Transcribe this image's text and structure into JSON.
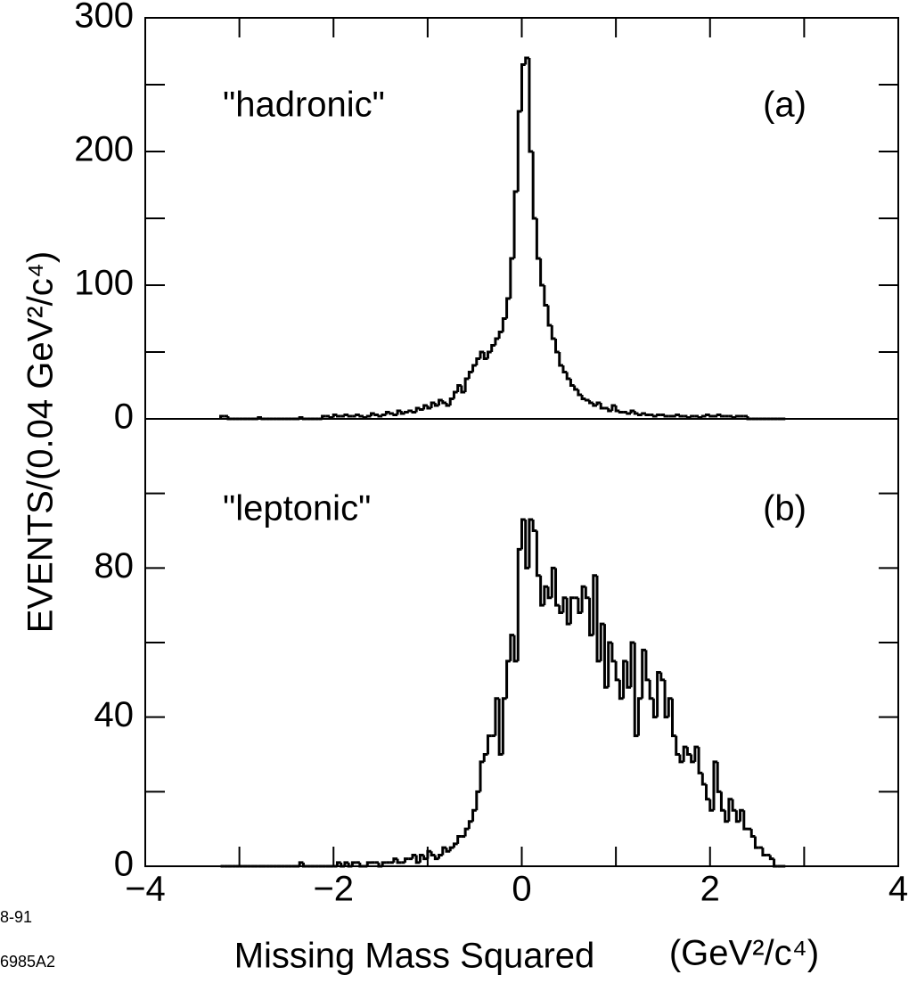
{
  "chart_data": {
    "type": "histogram",
    "ylabel": "EVENTS/(0.04 GeV²/c⁴)",
    "xlabel": "Missing Mass Squared",
    "xunit": "(GeV²/c⁴)",
    "notes": [
      "8-91",
      "6985A2"
    ],
    "color": "#000000",
    "xlim": [
      -4,
      4
    ],
    "xticks": [
      {
        "value": -4,
        "label": "−4"
      },
      {
        "value": -2,
        "label": "−2"
      },
      0,
      2,
      4
    ],
    "minor_xticks": [
      -3,
      -1,
      1,
      3
    ],
    "bins": [
      -3.2,
      -3.16,
      -3.12,
      -3.08,
      -3.04,
      -3,
      -2.96,
      -2.92,
      -2.88,
      -2.84,
      -2.8,
      -2.76,
      -2.72,
      -2.68,
      -2.64,
      -2.6,
      -2.56,
      -2.52,
      -2.48,
      -2.44,
      -2.4,
      -2.36,
      -2.32,
      -2.28,
      -2.24,
      -2.2,
      -2.16,
      -2.12,
      -2.08,
      -2.04,
      -2,
      -1.96,
      -1.92,
      -1.88,
      -1.84,
      -1.8,
      -1.76,
      -1.72,
      -1.68,
      -1.64,
      -1.6,
      -1.56,
      -1.52,
      -1.48,
      -1.44,
      -1.4,
      -1.36,
      -1.32,
      -1.28,
      -1.24,
      -1.2,
      -1.16,
      -1.12,
      -1.08,
      -1.04,
      -1,
      -0.96,
      -0.92,
      -0.88,
      -0.84,
      -0.8,
      -0.76,
      -0.72,
      -0.68,
      -0.64,
      -0.6,
      -0.56,
      -0.52,
      -0.48,
      -0.44,
      -0.4,
      -0.36,
      -0.32,
      -0.28,
      -0.24,
      -0.2,
      -0.16,
      -0.12,
      -0.08,
      -0.04,
      0,
      0.04,
      0.08,
      0.12,
      0.16,
      0.2,
      0.24,
      0.28,
      0.32,
      0.36,
      0.4,
      0.44,
      0.48,
      0.52,
      0.56,
      0.6,
      0.64,
      0.68,
      0.72,
      0.76,
      0.8,
      0.84,
      0.88,
      0.92,
      0.96,
      1,
      1.04,
      1.08,
      1.12,
      1.16,
      1.2,
      1.24,
      1.28,
      1.32,
      1.36,
      1.4,
      1.44,
      1.48,
      1.52,
      1.56,
      1.6,
      1.64,
      1.68,
      1.72,
      1.76,
      1.8,
      1.84,
      1.88,
      1.92,
      1.96,
      2,
      2.04,
      2.08,
      2.12,
      2.16,
      2.2,
      2.24,
      2.28,
      2.32,
      2.36,
      2.4,
      2.44,
      2.48,
      2.52,
      2.56,
      2.6,
      2.64,
      2.68,
      2.72,
      2.76,
      2.8
    ],
    "panels": [
      {
        "label": "\"hadronic\"",
        "tag": "(a)",
        "ylim": [
          0,
          300
        ],
        "yticks": [
          0,
          100,
          200,
          300
        ],
        "minor_yticks": [
          50,
          150,
          250
        ],
        "values": [
          2,
          2,
          0,
          0,
          0,
          0,
          0,
          0,
          0,
          0,
          1,
          0,
          0,
          0,
          0,
          0,
          0,
          0,
          0,
          0,
          0,
          1,
          0,
          0,
          0,
          0,
          0,
          2,
          2,
          1,
          3,
          2,
          2,
          3,
          2,
          2,
          3,
          2,
          1,
          2,
          4,
          3,
          2,
          3,
          5,
          4,
          3,
          6,
          4,
          5,
          6,
          5,
          8,
          7,
          10,
          8,
          12,
          10,
          14,
          12,
          10,
          15,
          20,
          25,
          20,
          30,
          35,
          40,
          45,
          50,
          45,
          50,
          55,
          60,
          65,
          75,
          90,
          120,
          170,
          230,
          265,
          270,
          200,
          150,
          120,
          100,
          85,
          70,
          60,
          50,
          40,
          35,
          30,
          25,
          22,
          18,
          15,
          14,
          12,
          10,
          12,
          8,
          8,
          6,
          10,
          6,
          5,
          5,
          4,
          6,
          4,
          3,
          4,
          3,
          3,
          2,
          3,
          3,
          2,
          2,
          2,
          3,
          2,
          2,
          1,
          2,
          2,
          1,
          2,
          3,
          2,
          2,
          3,
          2,
          2,
          2,
          1,
          2,
          2,
          2,
          0,
          0,
          0,
          0,
          0,
          0,
          0,
          0,
          0,
          0
        ]
      },
      {
        "label": "\"leptonic\"",
        "tag": "(b)",
        "ylim": [
          0,
          120
        ],
        "yticks": [
          0,
          40,
          80
        ],
        "minor_yticks": [
          20,
          60,
          100
        ],
        "values": [
          0,
          0,
          0,
          0,
          0,
          0,
          0,
          0,
          0,
          0,
          0,
          0,
          0,
          0,
          0,
          0,
          0,
          0,
          0,
          0,
          0,
          1,
          0,
          0,
          0,
          0,
          0,
          0,
          0,
          0,
          0,
          1,
          0,
          1,
          0,
          1,
          1,
          0,
          0,
          1,
          1,
          1,
          0,
          1,
          1,
          1,
          2,
          1,
          1,
          2,
          2,
          3,
          1,
          3,
          2,
          4,
          3,
          2,
          3,
          5,
          4,
          5,
          6,
          8,
          8,
          10,
          12,
          15,
          20,
          28,
          30,
          35,
          35,
          45,
          30,
          45,
          55,
          62,
          55,
          85,
          93,
          80,
          93,
          90,
          78,
          70,
          75,
          72,
          80,
          70,
          68,
          72,
          65,
          72,
          72,
          68,
          75,
          72,
          62,
          78,
          55,
          65,
          48,
          60,
          55,
          50,
          45,
          55,
          48,
          60,
          35,
          45,
          58,
          50,
          45,
          40,
          52,
          50,
          40,
          45,
          35,
          30,
          28,
          32,
          30,
          28,
          32,
          25,
          22,
          18,
          15,
          28,
          20,
          15,
          12,
          18,
          15,
          12,
          15,
          10,
          10,
          8,
          5,
          5,
          3,
          3,
          2,
          0,
          0,
          0
        ]
      }
    ]
  }
}
